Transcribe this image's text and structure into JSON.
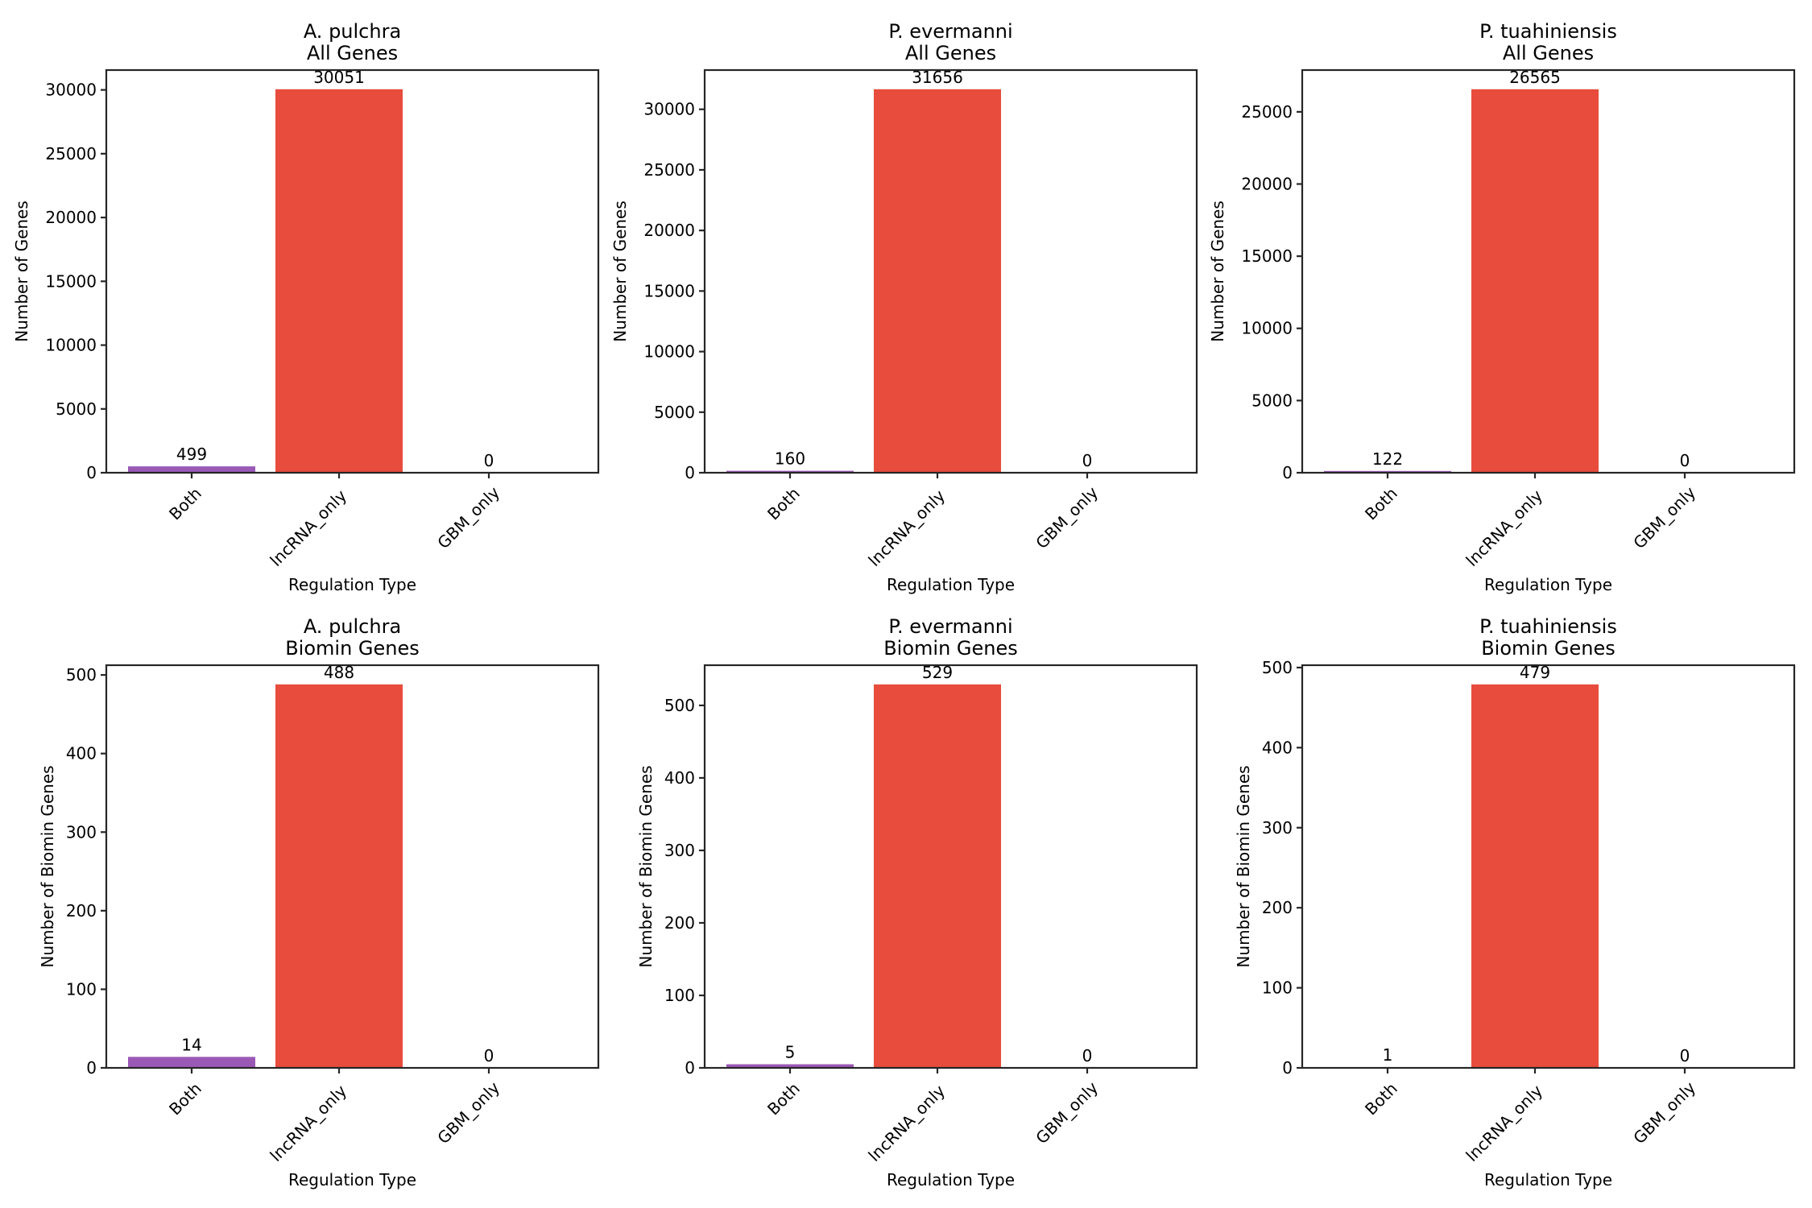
{
  "chart_data": [
    {
      "type": "bar",
      "title": "A. pulchra\nAll Genes",
      "xlabel": "Regulation Type",
      "ylabel": "Number of Genes",
      "categories": [
        "Both",
        "lncRNA_only",
        "GBM_only"
      ],
      "values": [
        499,
        30051,
        0
      ],
      "colors": [
        "#9b59b6",
        "#e74c3c",
        "#3498db"
      ],
      "yticks": [
        0,
        5000,
        10000,
        15000,
        20000,
        25000,
        30000
      ],
      "ylim": [
        0,
        31553.55
      ],
      "grid": false
    },
    {
      "type": "bar",
      "title": "P. evermanni\nAll Genes",
      "xlabel": "Regulation Type",
      "ylabel": "Number of Genes",
      "categories": [
        "Both",
        "lncRNA_only",
        "GBM_only"
      ],
      "values": [
        160,
        31656,
        0
      ],
      "colors": [
        "#9b59b6",
        "#e74c3c",
        "#3498db"
      ],
      "yticks": [
        0,
        5000,
        10000,
        15000,
        20000,
        25000,
        30000
      ],
      "ylim": [
        0,
        33238.8
      ],
      "grid": false
    },
    {
      "type": "bar",
      "title": "P. tuahiniensis\nAll Genes",
      "xlabel": "Regulation Type",
      "ylabel": "Number of Genes",
      "categories": [
        "Both",
        "lncRNA_only",
        "GBM_only"
      ],
      "values": [
        122,
        26565,
        0
      ],
      "colors": [
        "#9b59b6",
        "#e74c3c",
        "#3498db"
      ],
      "yticks": [
        0,
        5000,
        10000,
        15000,
        20000,
        25000
      ],
      "ylim": [
        0,
        27893.25
      ],
      "grid": false
    },
    {
      "type": "bar",
      "title": "A. pulchra\nBiomin Genes",
      "xlabel": "Regulation Type",
      "ylabel": "Number of Biomin Genes",
      "categories": [
        "Both",
        "lncRNA_only",
        "GBM_only"
      ],
      "values": [
        14,
        488,
        0
      ],
      "colors": [
        "#9b59b6",
        "#e74c3c",
        "#3498db"
      ],
      "yticks": [
        0,
        100,
        200,
        300,
        400,
        500
      ],
      "ylim": [
        0,
        512.4
      ],
      "grid": false
    },
    {
      "type": "bar",
      "title": "P. evermanni\nBiomin Genes",
      "xlabel": "Regulation Type",
      "ylabel": "Number of Biomin Genes",
      "categories": [
        "Both",
        "lncRNA_only",
        "GBM_only"
      ],
      "values": [
        5,
        529,
        0
      ],
      "colors": [
        "#9b59b6",
        "#e74c3c",
        "#3498db"
      ],
      "yticks": [
        0,
        100,
        200,
        300,
        400,
        500
      ],
      "ylim": [
        0,
        555.45
      ],
      "grid": false
    },
    {
      "type": "bar",
      "title": "P. tuahiniensis\nBiomin Genes",
      "xlabel": "Regulation Type",
      "ylabel": "Number of Biomin Genes",
      "categories": [
        "Both",
        "lncRNA_only",
        "GBM_only"
      ],
      "values": [
        1,
        479,
        0
      ],
      "colors": [
        "#9b59b6",
        "#e74c3c",
        "#3498db"
      ],
      "yticks": [
        0,
        100,
        200,
        300,
        400,
        500
      ],
      "ylim": [
        0,
        502.95
      ],
      "grid": false
    }
  ]
}
